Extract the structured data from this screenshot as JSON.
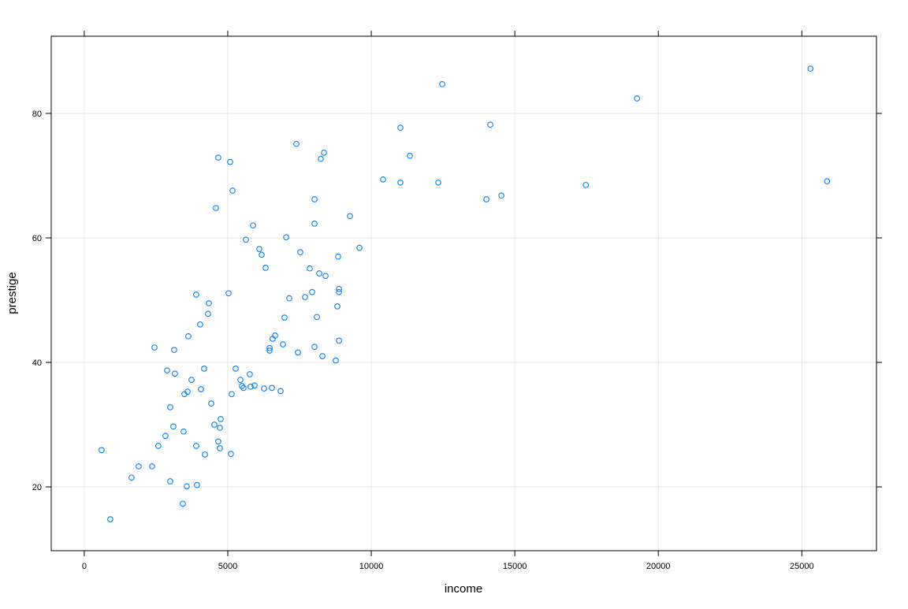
{
  "chart_data": {
    "type": "scatter",
    "x_label": "income",
    "y_label": "prestige",
    "xlim": [
      -1150,
      27600
    ],
    "ylim": [
      9.75,
      92.4
    ],
    "xticks": [
      0,
      5000,
      10000,
      15000,
      20000,
      25000
    ],
    "yticks": [
      20,
      40,
      60,
      80
    ],
    "grid": true,
    "color": "#0080ff",
    "x": [
      604,
      907,
      1648,
      1896,
      2363,
      2445,
      2582,
      2830,
      2885,
      2995,
      2995,
      3104,
      3132,
      3159,
      3434,
      3462,
      3489,
      3571,
      3599,
      3626,
      3736,
      3901,
      3929,
      3901,
      4038,
      4066,
      4176,
      4203,
      4313,
      4341,
      4423,
      4533,
      4588,
      4670,
      4670,
      4725,
      4725,
      4753,
      5027,
      5082,
      5110,
      5137,
      5165,
      5275,
      5440,
      5495,
      5549,
      5632,
      5769,
      5797,
      5879,
      5934,
      6099,
      6181,
      6264,
      6319,
      6456,
      6456,
      6538,
      6566,
      6648,
      6841,
      6923,
      6978,
      7033,
      7143,
      7390,
      7445,
      7527,
      7692,
      7857,
      7940,
      8022,
      8022,
      8022,
      8104,
      8187,
      8242,
      8297,
      8352,
      8407,
      8764,
      8819,
      8846,
      8874,
      8874,
      8874,
      9258,
      9588,
      10412,
      11016,
      11016,
      11346,
      12335,
      12473,
      14011,
      14148,
      14533,
      17473,
      19258,
      25302,
      25879
    ],
    "y": [
      25.9,
      14.8,
      21.5,
      23.3,
      23.3,
      42.4,
      26.6,
      28.2,
      38.7,
      20.9,
      32.8,
      29.7,
      42.0,
      38.2,
      17.3,
      28.9,
      34.9,
      20.1,
      35.3,
      44.2,
      37.2,
      50.9,
      20.3,
      26.6,
      46.1,
      35.7,
      39.0,
      25.2,
      47.8,
      49.5,
      33.4,
      30.0,
      64.8,
      72.9,
      27.3,
      29.5,
      26.2,
      30.9,
      51.1,
      72.2,
      25.3,
      34.9,
      67.6,
      39.0,
      37.2,
      36.2,
      35.9,
      59.7,
      38.1,
      36.1,
      62.0,
      36.3,
      58.2,
      57.3,
      35.8,
      55.2,
      42.3,
      41.9,
      35.9,
      43.8,
      44.3,
      35.4,
      42.9,
      47.2,
      60.1,
      50.3,
      75.1,
      41.6,
      57.7,
      50.5,
      55.1,
      51.3,
      42.5,
      66.2,
      62.3,
      47.3,
      54.3,
      72.7,
      41.0,
      73.7,
      53.9,
      40.3,
      49.0,
      57.0,
      51.3,
      51.8,
      43.5,
      63.5,
      58.4,
      69.4,
      77.7,
      68.9,
      73.2,
      68.9,
      84.7,
      66.2,
      78.2,
      66.8,
      68.5,
      82.4,
      87.2,
      69.1
    ]
  }
}
